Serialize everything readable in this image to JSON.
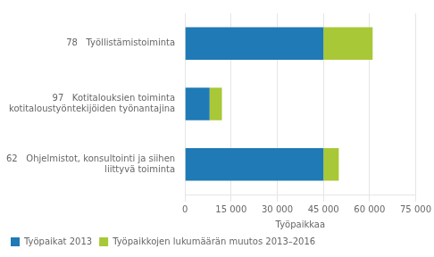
{
  "chart_data": {
    "type": "bar",
    "orientation": "horizontal",
    "stacked": true,
    "categories": [
      "78   Työllistämistoiminta",
      "97   Kotitalouksien toiminta\nkotitaloustyöntekijöiden työnantajina",
      "62   Ohjelmistot, konsultointi ja siihen\n       liittyvä toiminta"
    ],
    "series": [
      {
        "name": "Työpaikat 2013",
        "color": "#1f7ab5",
        "values": [
          45000,
          8000,
          45000
        ]
      },
      {
        "name": "Työpaikkojen lukumäärän muutos 2013–2016",
        "color": "#a8c837",
        "values": [
          16000,
          4000,
          5000
        ]
      }
    ],
    "xlabel": "Työpaikkaa",
    "xlim": [
      0,
      75000
    ],
    "xticks": [
      0,
      {
        "value": 15000,
        "label": "15 000"
      },
      {
        "value": 30000,
        "label": "30 000"
      },
      {
        "value": 45000,
        "label": "45 000"
      },
      {
        "value": 60000,
        "label": "60 000"
      },
      {
        "value": 75000,
        "label": "75 000"
      }
    ],
    "grid": true,
    "legend": "lower left"
  }
}
